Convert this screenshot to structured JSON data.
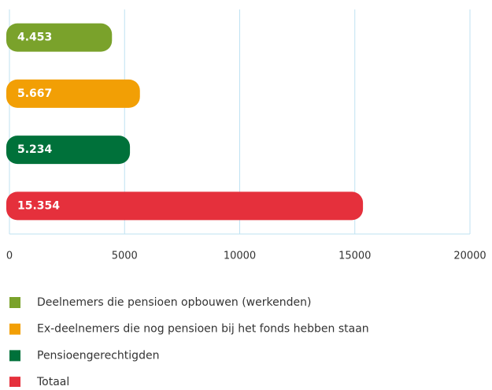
{
  "chart_data": {
    "type": "bar",
    "series": [
      {
        "name": "Deelnemers die pensioen opbouwen (werkenden)",
        "color": "#7aa22b",
        "values": [
          4453
        ],
        "value_labels": [
          "4.453"
        ]
      },
      {
        "name": "Ex-deelnemers die nog pensioen bij het fonds hebben staan",
        "color": "#f29f05",
        "values": [
          5667
        ],
        "value_labels": [
          "5.667"
        ]
      },
      {
        "name": "Pensioengerechtigden",
        "color": "#00713a",
        "values": [
          5234
        ],
        "value_labels": [
          "5.234"
        ]
      },
      {
        "name": "Totaal",
        "color": "#e5303c",
        "values": [
          15354
        ],
        "value_labels": [
          "15.354"
        ]
      }
    ],
    "xlim": [
      0,
      20000
    ],
    "xticks": [
      0,
      5000,
      10000,
      15000,
      20000
    ],
    "grid": true
  }
}
